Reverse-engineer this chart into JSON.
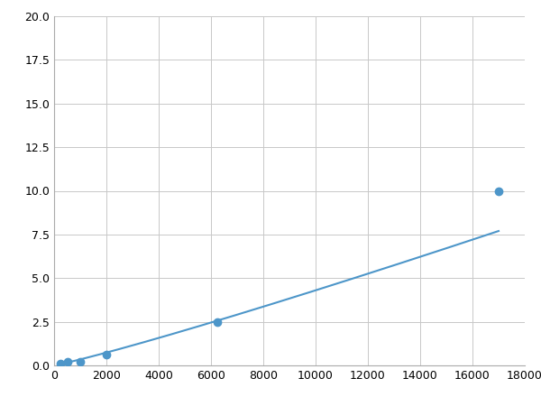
{
  "x_points": [
    250,
    500,
    1000,
    2000,
    6250,
    17000
  ],
  "y_points": [
    0.1,
    0.2,
    0.2,
    0.6,
    2.5,
    10.0
  ],
  "line_color": "#4d96c9",
  "marker_color": "#4d96c9",
  "marker_size": 6,
  "linewidth": 1.5,
  "xlim": [
    0,
    18000
  ],
  "ylim": [
    0,
    20.0
  ],
  "xticks": [
    0,
    2000,
    4000,
    6000,
    8000,
    10000,
    12000,
    14000,
    16000,
    18000
  ],
  "yticks": [
    0.0,
    2.5,
    5.0,
    7.5,
    10.0,
    12.5,
    15.0,
    17.5,
    20.0
  ],
  "grid_color": "#c8c8c8",
  "background_color": "#ffffff",
  "tick_labelsize": 9
}
